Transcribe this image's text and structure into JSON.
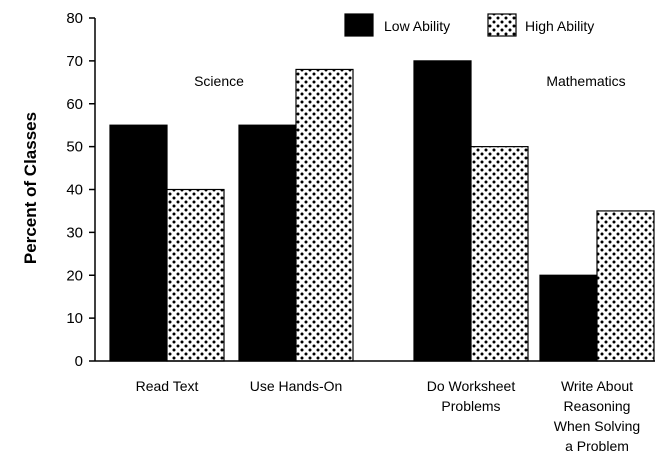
{
  "chart_data": {
    "type": "bar",
    "ylabel": "Percent of Classes",
    "ylim": [
      0,
      80
    ],
    "yticks": [
      "0",
      "10",
      "20",
      "30",
      "40",
      "50",
      "60",
      "70",
      "80"
    ],
    "categories": [
      [
        "Read Text"
      ],
      [
        "Use Hands-On"
      ],
      [
        "Do Worksheet",
        "Problems"
      ],
      [
        "Write About",
        "Reasoning",
        "When Solving",
        "a Problem"
      ]
    ],
    "series": [
      {
        "name": "Low Ability",
        "pattern": "solid",
        "color": "#000000",
        "values": [
          55,
          55,
          70,
          20
        ]
      },
      {
        "name": "High Ability",
        "pattern": "dots",
        "color": "#000000",
        "values": [
          40,
          68,
          50,
          35
        ]
      }
    ],
    "groups": [
      {
        "label": "Science",
        "categories": [
          0,
          1
        ]
      },
      {
        "label": "Mathematics",
        "categories": [
          2,
          3
        ]
      }
    ],
    "grid": false,
    "legend": "top-right"
  }
}
